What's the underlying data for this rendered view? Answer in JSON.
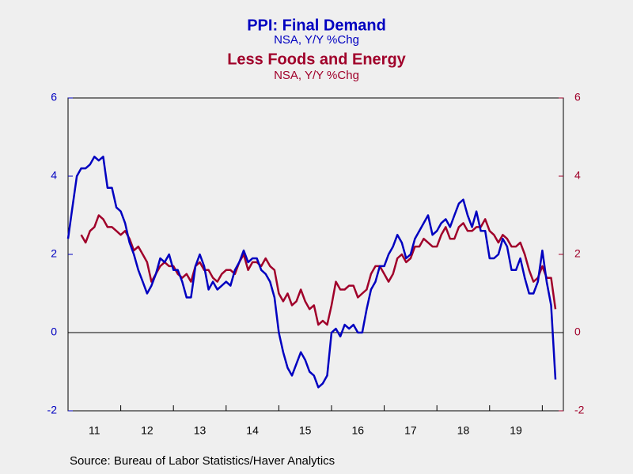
{
  "chart_data": {
    "type": "line",
    "title": "PPI: Final Demand",
    "subtitle": "NSA, Y/Y %Chg",
    "title2": "Less Foods and Energy",
    "subtitle2": "NSA, Y/Y %Chg",
    "source": "Source:  Bureau of Labor Statistics/Haver Analytics",
    "xlim": [
      2011,
      2020.4
    ],
    "xticks": [
      2012,
      2013,
      2014,
      2015,
      2016,
      2017,
      2018,
      2019,
      2020
    ],
    "xtick_labels": [
      {
        "value": 2011.5,
        "label": "11"
      },
      {
        "value": 2012.5,
        "label": "12"
      },
      {
        "value": 2013.5,
        "label": "13"
      },
      {
        "value": 2014.5,
        "label": "14"
      },
      {
        "value": 2015.5,
        "label": "15"
      },
      {
        "value": 2016.5,
        "label": "16"
      },
      {
        "value": 2017.5,
        "label": "17"
      },
      {
        "value": 2018.5,
        "label": "18"
      },
      {
        "value": 2019.5,
        "label": "19"
      }
    ],
    "ylim": [
      -2,
      6
    ],
    "yticks": [
      -2,
      0,
      2,
      4,
      6
    ],
    "y2lim": [
      -2,
      6
    ],
    "y2ticks": [
      -2,
      0,
      2,
      4,
      6
    ],
    "series": [
      {
        "name": "PPI: Final Demand",
        "color": "#0000c0",
        "x": [
          2011.0,
          2011.083,
          2011.167,
          2011.25,
          2011.333,
          2011.417,
          2011.5,
          2011.583,
          2011.667,
          2011.75,
          2011.833,
          2011.917,
          2012.0,
          2012.083,
          2012.167,
          2012.25,
          2012.333,
          2012.417,
          2012.5,
          2012.583,
          2012.667,
          2012.75,
          2012.833,
          2012.917,
          2013.0,
          2013.083,
          2013.167,
          2013.25,
          2013.333,
          2013.417,
          2013.5,
          2013.583,
          2013.667,
          2013.75,
          2013.833,
          2013.917,
          2014.0,
          2014.083,
          2014.167,
          2014.25,
          2014.333,
          2014.417,
          2014.5,
          2014.583,
          2014.667,
          2014.75,
          2014.833,
          2014.917,
          2015.0,
          2015.083,
          2015.167,
          2015.25,
          2015.333,
          2015.417,
          2015.5,
          2015.583,
          2015.667,
          2015.75,
          2015.833,
          2015.917,
          2016.0,
          2016.083,
          2016.167,
          2016.25,
          2016.333,
          2016.417,
          2016.5,
          2016.583,
          2016.667,
          2016.75,
          2016.833,
          2016.917,
          2017.0,
          2017.083,
          2017.167,
          2017.25,
          2017.333,
          2017.417,
          2017.5,
          2017.583,
          2017.667,
          2017.75,
          2017.833,
          2017.917,
          2018.0,
          2018.083,
          2018.167,
          2018.25,
          2018.333,
          2018.417,
          2018.5,
          2018.583,
          2018.667,
          2018.75,
          2018.833,
          2018.917,
          2019.0,
          2019.083,
          2019.167,
          2019.25,
          2019.333,
          2019.417,
          2019.5,
          2019.583,
          2019.667,
          2019.75,
          2019.833,
          2019.917,
          2020.0,
          2020.083,
          2020.167,
          2020.25
        ],
        "values": [
          2.4,
          3.2,
          4.0,
          4.2,
          4.2,
          4.3,
          4.5,
          4.4,
          4.5,
          3.7,
          3.7,
          3.2,
          3.1,
          2.8,
          2.3,
          2.0,
          1.6,
          1.3,
          1.0,
          1.2,
          1.5,
          1.9,
          1.8,
          2.0,
          1.6,
          1.6,
          1.3,
          0.9,
          0.9,
          1.7,
          2.0,
          1.7,
          1.1,
          1.3,
          1.1,
          1.2,
          1.3,
          1.2,
          1.6,
          1.8,
          2.1,
          1.8,
          1.9,
          1.9,
          1.6,
          1.5,
          1.3,
          0.9,
          0.0,
          -0.5,
          -0.9,
          -1.1,
          -0.8,
          -0.5,
          -0.7,
          -1.0,
          -1.1,
          -1.4,
          -1.3,
          -1.1,
          0.0,
          0.1,
          -0.1,
          0.2,
          0.1,
          0.2,
          0.0,
          0.0,
          0.6,
          1.1,
          1.3,
          1.7,
          1.7,
          2.0,
          2.2,
          2.5,
          2.3,
          1.9,
          2.0,
          2.4,
          2.6,
          2.8,
          3.0,
          2.5,
          2.6,
          2.8,
          2.9,
          2.7,
          3.0,
          3.3,
          3.4,
          3.0,
          2.7,
          3.1,
          2.6,
          2.6,
          1.9,
          1.9,
          2.0,
          2.4,
          2.2,
          1.6,
          1.6,
          1.9,
          1.4,
          1.0,
          1.0,
          1.3,
          2.1,
          1.3,
          0.7,
          -1.2
        ]
      },
      {
        "name": "Less Foods and Energy",
        "color": "#a0002a",
        "axis": "y2",
        "x": [
          2011.25,
          2011.333,
          2011.417,
          2011.5,
          2011.583,
          2011.667,
          2011.75,
          2011.833,
          2011.917,
          2012.0,
          2012.083,
          2012.167,
          2012.25,
          2012.333,
          2012.417,
          2012.5,
          2012.583,
          2012.667,
          2012.75,
          2012.833,
          2012.917,
          2013.0,
          2013.083,
          2013.167,
          2013.25,
          2013.333,
          2013.417,
          2013.5,
          2013.583,
          2013.667,
          2013.75,
          2013.833,
          2013.917,
          2014.0,
          2014.083,
          2014.167,
          2014.25,
          2014.333,
          2014.417,
          2014.5,
          2014.583,
          2014.667,
          2014.75,
          2014.833,
          2014.917,
          2015.0,
          2015.083,
          2015.167,
          2015.25,
          2015.333,
          2015.417,
          2015.5,
          2015.583,
          2015.667,
          2015.75,
          2015.833,
          2015.917,
          2016.0,
          2016.083,
          2016.167,
          2016.25,
          2016.333,
          2016.417,
          2016.5,
          2016.583,
          2016.667,
          2016.75,
          2016.833,
          2016.917,
          2017.0,
          2017.083,
          2017.167,
          2017.25,
          2017.333,
          2017.417,
          2017.5,
          2017.583,
          2017.667,
          2017.75,
          2017.833,
          2017.917,
          2018.0,
          2018.083,
          2018.167,
          2018.25,
          2018.333,
          2018.417,
          2018.5,
          2018.583,
          2018.667,
          2018.75,
          2018.833,
          2018.917,
          2019.0,
          2019.083,
          2019.167,
          2019.25,
          2019.333,
          2019.417,
          2019.5,
          2019.583,
          2019.667,
          2019.75,
          2019.833,
          2019.917,
          2020.0,
          2020.083,
          2020.167,
          2020.25
        ],
        "values": [
          2.5,
          2.3,
          2.6,
          2.7,
          3.0,
          2.9,
          2.7,
          2.7,
          2.6,
          2.5,
          2.6,
          2.4,
          2.1,
          2.2,
          2.0,
          1.8,
          1.3,
          1.5,
          1.7,
          1.8,
          1.7,
          1.7,
          1.5,
          1.4,
          1.5,
          1.3,
          1.7,
          1.8,
          1.6,
          1.6,
          1.4,
          1.3,
          1.5,
          1.6,
          1.6,
          1.5,
          1.8,
          2.0,
          1.6,
          1.8,
          1.8,
          1.7,
          1.9,
          1.7,
          1.6,
          1.0,
          0.8,
          1.0,
          0.7,
          0.8,
          1.1,
          0.8,
          0.6,
          0.7,
          0.2,
          0.3,
          0.2,
          0.7,
          1.3,
          1.1,
          1.1,
          1.2,
          1.2,
          0.9,
          1.0,
          1.1,
          1.5,
          1.7,
          1.7,
          1.5,
          1.3,
          1.5,
          1.9,
          2.0,
          1.8,
          1.9,
          2.2,
          2.2,
          2.4,
          2.3,
          2.2,
          2.2,
          2.5,
          2.7,
          2.4,
          2.4,
          2.7,
          2.8,
          2.6,
          2.6,
          2.7,
          2.7,
          2.9,
          2.6,
          2.5,
          2.3,
          2.5,
          2.4,
          2.2,
          2.2,
          2.3,
          2.0,
          1.6,
          1.3,
          1.4,
          1.7,
          1.4,
          1.4,
          0.6
        ]
      }
    ]
  }
}
